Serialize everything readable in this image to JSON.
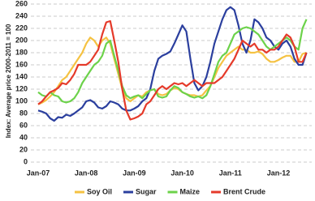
{
  "chart_data": {
    "type": "line",
    "y_label": "Index: Average price 2000-2011 = 100",
    "categories": [
      "Jan-07",
      null,
      null,
      null,
      null,
      null,
      null,
      null,
      null,
      null,
      null,
      null,
      "Jan-08",
      null,
      null,
      null,
      null,
      null,
      null,
      null,
      null,
      null,
      null,
      null,
      "Jan-09",
      null,
      null,
      null,
      null,
      null,
      null,
      null,
      null,
      null,
      null,
      null,
      "Jan-10",
      null,
      null,
      null,
      null,
      null,
      null,
      null,
      null,
      null,
      null,
      null,
      "Jan-11",
      null,
      null,
      null,
      null,
      null,
      null,
      null,
      null,
      null,
      null,
      null,
      "Jan-12",
      null,
      null,
      null,
      null,
      null,
      null,
      null
    ],
    "series": [
      {
        "name": "Soy Oil",
        "color": "#f5c242",
        "values": [
          95,
          98,
          102,
          108,
          115,
          125,
          135,
          140,
          150,
          160,
          170,
          180,
          195,
          205,
          200,
          190,
          200,
          205,
          195,
          170,
          145,
          120,
          105,
          100,
          105,
          110,
          108,
          115,
          118,
          120,
          112,
          110,
          112,
          118,
          122,
          120,
          115,
          112,
          110,
          110,
          108,
          110,
          118,
          125,
          140,
          155,
          165,
          175,
          180,
          185,
          190,
          185,
          185,
          180,
          180,
          182,
          178,
          170,
          165,
          165,
          168,
          172,
          175,
          175,
          165,
          165,
          178,
          180
        ]
      },
      {
        "name": "Sugar",
        "color": "#2b3f9e",
        "values": [
          85,
          83,
          80,
          72,
          68,
          74,
          73,
          78,
          76,
          80,
          85,
          90,
          100,
          102,
          98,
          90,
          88,
          92,
          100,
          98,
          95,
          88,
          85,
          85,
          88,
          92,
          100,
          105,
          120,
          150,
          170,
          175,
          178,
          182,
          195,
          210,
          225,
          215,
          170,
          130,
          118,
          125,
          140,
          165,
          195,
          215,
          235,
          250,
          255,
          250,
          225,
          195,
          180,
          200,
          235,
          230,
          220,
          205,
          200,
          190,
          185,
          195,
          200,
          190,
          170,
          160,
          160,
          180
        ]
      },
      {
        "name": "Maize",
        "color": "#6cd24a",
        "values": [
          115,
          110,
          108,
          115,
          110,
          108,
          100,
          98,
          100,
          105,
          115,
          130,
          140,
          150,
          160,
          165,
          175,
          195,
          200,
          175,
          150,
          125,
          110,
          105,
          108,
          110,
          105,
          112,
          118,
          120,
          108,
          106,
          108,
          118,
          125,
          122,
          115,
          112,
          108,
          106,
          108,
          105,
          110,
          125,
          145,
          165,
          175,
          180,
          195,
          210,
          215,
          220,
          222,
          220,
          215,
          210,
          200,
          190,
          185,
          190,
          195,
          200,
          205,
          200,
          190,
          185,
          220,
          235
        ]
      },
      {
        "name": "Brent Crude",
        "color": "#e53a2a",
        "values": [
          95,
          100,
          108,
          115,
          118,
          122,
          130,
          128,
          135,
          145,
          160,
          160,
          160,
          165,
          175,
          185,
          210,
          230,
          232,
          200,
          165,
          120,
          85,
          70,
          72,
          75,
          80,
          95,
          100,
          110,
          120,
          125,
          120,
          125,
          130,
          128,
          130,
          125,
          130,
          135,
          130,
          125,
          130,
          130,
          130,
          135,
          140,
          150,
          160,
          170,
          185,
          200,
          195,
          190,
          195,
          185,
          185,
          180,
          185,
          185,
          190,
          200,
          210,
          205,
          190,
          165,
          165,
          180
        ]
      }
    ],
    "ylim": [
      0,
      260
    ],
    "yticks": [
      0,
      20,
      40,
      60,
      80,
      100,
      120,
      140,
      160,
      180,
      200,
      220,
      240,
      260
    ],
    "grid": true
  }
}
